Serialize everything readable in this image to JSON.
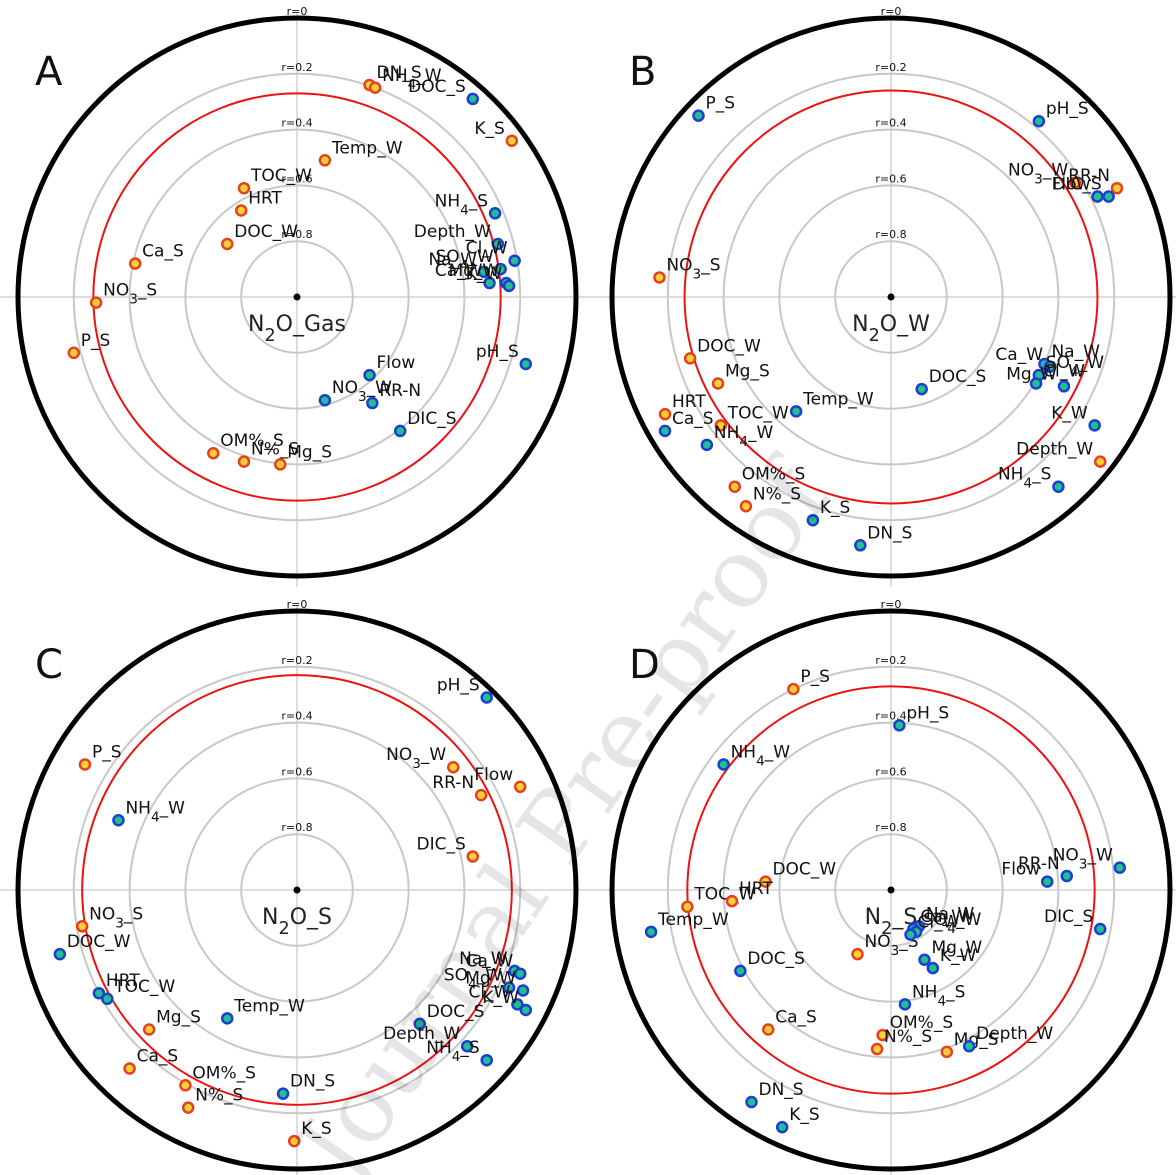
{
  "watermark": "Journal Pre-proof",
  "chart_data": [
    {
      "type": "polar",
      "panel": "A",
      "center_label": "N2O_Gas",
      "threshold_r": 0.27,
      "rticks": [
        {
          "value": 0,
          "label": "r=0"
        },
        {
          "value": 0.2,
          "label": "r=0.2"
        },
        {
          "value": 0.4,
          "label": "r=0.4"
        },
        {
          "value": 0.6,
          "label": "r=0.6"
        },
        {
          "value": 0.8,
          "label": "r=0.8"
        }
      ],
      "series": [
        {
          "color": "#e8401c",
          "fill": "#ffd23c",
          "labels": [
            "DN_S",
            "NH4_W",
            "K_S",
            "Temp_W",
            "TOC_W",
            "HRT",
            "DOC_W",
            "Ca_S",
            "NO3_S",
            "P_S",
            "OM%_S",
            "N%_S",
            "Mg_S"
          ],
          "x": [
            0.26,
            0.28,
            0.77,
            0.1,
            -0.19,
            -0.2,
            -0.25,
            -0.58,
            -0.72,
            -0.8,
            -0.3,
            -0.19,
            -0.06
          ],
          "y": [
            0.76,
            0.75,
            0.56,
            0.49,
            0.39,
            0.31,
            0.19,
            0.12,
            -0.02,
            -0.2,
            -0.56,
            -0.59,
            -0.6
          ]
        },
        {
          "color": "#1a3fd6",
          "fill": "#22c08a",
          "labels": [
            "DOC_S",
            "NH4_S",
            "Depth_W",
            "Cl_W",
            "SO4_W",
            "Na_W",
            "Mg_W",
            "Ca_W",
            "K_W",
            "pH_S",
            "Flow",
            "NO3_W",
            "RR-N",
            "DIC_S"
          ],
          "x": [
            0.63,
            0.71,
            0.72,
            0.78,
            0.73,
            0.67,
            0.75,
            0.69,
            0.76,
            0.82,
            0.26,
            0.1,
            0.27,
            0.37
          ],
          "y": [
            0.71,
            0.3,
            0.19,
            0.13,
            0.1,
            0.09,
            0.05,
            0.05,
            0.04,
            -0.24,
            -0.28,
            -0.37,
            -0.38,
            -0.48
          ]
        }
      ]
    },
    {
      "type": "polar",
      "panel": "B",
      "center_label": "N2O_W",
      "threshold_r": 0.26,
      "rticks": [
        {
          "value": 0,
          "label": "r=0"
        },
        {
          "value": 0.2,
          "label": "r=0.2"
        },
        {
          "value": 0.4,
          "label": "r=0.4"
        },
        {
          "value": 0.6,
          "label": "r=0.6"
        },
        {
          "value": 0.8,
          "label": "r=0.8"
        }
      ],
      "series": [
        {
          "color": "#e8401c",
          "fill": "#ffd23c",
          "labels": [
            "NO3_W",
            "RR-N",
            "NO3_S",
            "DOC_W",
            "Mg_S",
            "HRT",
            "TOC_W",
            "Depth_W",
            "OM%_S",
            "N%_S"
          ],
          "x": [
            0.66,
            0.81,
            -0.83,
            -0.72,
            -0.62,
            -0.81,
            -0.61,
            0.75,
            -0.56,
            -0.52
          ],
          "y": [
            0.41,
            0.39,
            0.07,
            -0.22,
            -0.31,
            -0.42,
            -0.46,
            -0.59,
            -0.68,
            -0.75
          ]
        },
        {
          "color": "#1a3fd6",
          "fill": "#22c08a",
          "labels": [
            "P_S",
            "pH_S",
            "Flow",
            "DIC_S",
            "Na_W",
            "Ca_W",
            "SO4_W",
            "Mg_W",
            "Cl_W",
            "DOC_S",
            "Temp_W",
            "Ca_S",
            "K_W",
            "NH4_W",
            "NH4_S",
            "K_S",
            "DN_S"
          ],
          "x": [
            -0.69,
            0.53,
            0.74,
            0.78,
            0.55,
            0.57,
            0.53,
            0.62,
            0.52,
            0.11,
            -0.34,
            -0.81,
            0.73,
            -0.66,
            0.6,
            -0.28,
            -0.11
          ],
          "y": [
            0.65,
            0.63,
            0.36,
            0.36,
            -0.24,
            -0.25,
            -0.28,
            -0.32,
            -0.31,
            -0.33,
            -0.41,
            -0.48,
            -0.46,
            -0.53,
            -0.68,
            -0.8,
            -0.89
          ]
        }
      ]
    },
    {
      "type": "polar",
      "panel": "C",
      "center_label": "N2O_S",
      "threshold_r": 0.23,
      "rticks": [
        {
          "value": 0,
          "label": "r=0"
        },
        {
          "value": 0.2,
          "label": "r=0.2"
        },
        {
          "value": 0.4,
          "label": "r=0.4"
        },
        {
          "value": 0.6,
          "label": "r=0.6"
        },
        {
          "value": 0.8,
          "label": "r=0.8"
        }
      ],
      "series": [
        {
          "color": "#e8401c",
          "fill": "#ffd23c",
          "labels": [
            "P_S",
            "NO3_W",
            "Flow",
            "RR-N",
            "DIC_S",
            "NO3_S",
            "Mg_S",
            "Ca_S",
            "OM%_S",
            "N%_S",
            "K_S"
          ],
          "x": [
            -0.76,
            0.56,
            0.8,
            0.66,
            0.63,
            -0.77,
            -0.53,
            -0.6,
            -0.4,
            -0.39,
            -0.01
          ],
          "y": [
            0.45,
            0.44,
            0.37,
            0.34,
            0.12,
            -0.13,
            -0.5,
            -0.64,
            -0.7,
            -0.78,
            -0.9
          ]
        },
        {
          "color": "#1a3fd6",
          "fill": "#22c08a",
          "labels": [
            "pH_S",
            "NH4_W",
            "DOC_W",
            "Na_W",
            "Ca_W",
            "SO4_W",
            "Mg_W",
            "Cl_W",
            "HRT",
            "TOC_W",
            "K_W",
            "DOC_S",
            "Temp_W",
            "Depth_W",
            "NH4_S",
            "DN_S"
          ],
          "x": [
            0.68,
            -0.64,
            -0.85,
            0.78,
            0.8,
            0.76,
            0.81,
            0.79,
            -0.71,
            -0.68,
            0.82,
            0.44,
            -0.25,
            0.61,
            0.68,
            -0.05
          ],
          "y": [
            0.69,
            0.25,
            -0.23,
            -0.29,
            -0.3,
            -0.35,
            -0.36,
            -0.41,
            -0.37,
            -0.39,
            -0.43,
            -0.48,
            -0.46,
            -0.56,
            -0.61,
            -0.73
          ]
        }
      ]
    },
    {
      "type": "polar",
      "panel": "D",
      "center_label": "N2_S",
      "threshold_r": 0.27,
      "rticks": [
        {
          "value": 0,
          "label": "r=0"
        },
        {
          "value": 0.2,
          "label": "r=0.2"
        },
        {
          "value": 0.4,
          "label": "r=0.4"
        },
        {
          "value": 0.6,
          "label": "r=0.6"
        },
        {
          "value": 0.8,
          "label": "r=0.8"
        }
      ],
      "series": [
        {
          "color": "#e8401c",
          "fill": "#ffd23c",
          "labels": [
            "P_S",
            "DOC_W",
            "TOC_W",
            "HRT",
            "NO3_S",
            "Ca_S",
            "OM%_S",
            "N%_S",
            "Mg_S"
          ],
          "x": [
            -0.35,
            -0.45,
            -0.73,
            -0.57,
            -0.12,
            -0.44,
            -0.03,
            -0.05,
            0.2
          ],
          "y": [
            0.72,
            0.03,
            -0.06,
            -0.04,
            -0.23,
            -0.5,
            -0.52,
            -0.57,
            -0.58
          ]
        },
        {
          "color": "#1a3fd6",
          "fill": "#22c08a",
          "labels": [
            "pH_S",
            "NH4_W",
            "RR-N",
            "NO3_W",
            "Flow",
            "Na_W",
            "Ca_W",
            "SO4_W",
            "Cl_W",
            "Temp_W",
            "DIC_S",
            "Mg_W",
            "DOC_S",
            "K_W",
            "NH4_S",
            "Depth_W",
            "DN_S",
            "K_S"
          ],
          "x": [
            0.03,
            -0.6,
            0.63,
            0.82,
            0.56,
            0.1,
            0.08,
            0.09,
            0.07,
            -0.86,
            0.75,
            0.12,
            -0.54,
            0.15,
            0.05,
            0.28,
            -0.5,
            -0.39
          ],
          "y": [
            0.59,
            0.45,
            0.05,
            0.08,
            0.03,
            -0.13,
            -0.14,
            -0.15,
            -0.16,
            -0.15,
            -0.14,
            -0.25,
            -0.29,
            -0.28,
            -0.41,
            -0.56,
            -0.76,
            -0.85
          ]
        }
      ]
    }
  ]
}
